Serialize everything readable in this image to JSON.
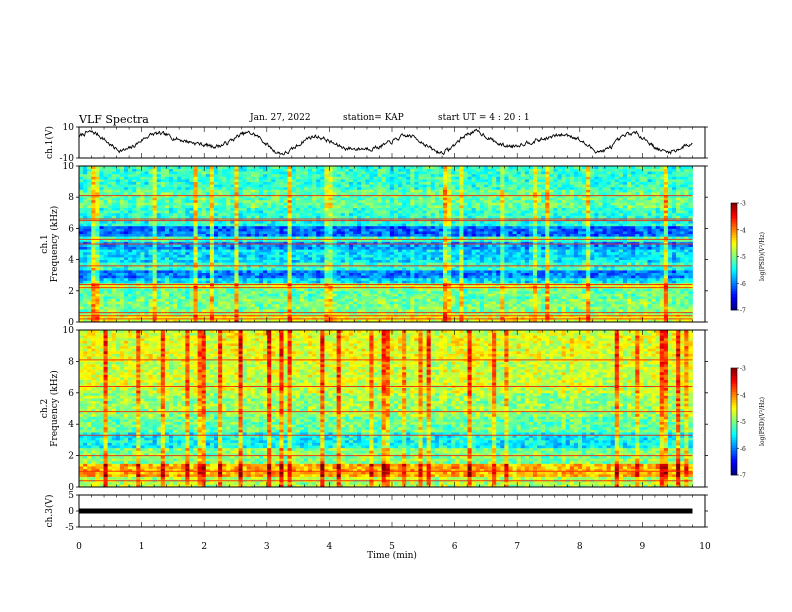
{
  "header": {
    "title": "VLF Spectra",
    "date": "Jan. 27, 2022",
    "station": "station= KAP",
    "start_ut": "start  UT =   4 : 20 : 1"
  },
  "chart_data": [
    {
      "type": "line",
      "panel": "ch1-waveform",
      "ylabel": "ch.1(V)",
      "ylim": [
        -10,
        10
      ],
      "yticks": [
        "10",
        "-10"
      ],
      "x_range": [
        0,
        9.8
      ],
      "color": "#000000"
    },
    {
      "type": "heatmap",
      "panel": "ch1-spectrogram",
      "ylabel": "ch.1\nFrequency (kHz)",
      "ylim": [
        0,
        10
      ],
      "yticks": [
        "0",
        "2",
        "4",
        "6",
        "8",
        "10"
      ],
      "x_range": [
        0,
        9.8
      ],
      "colorbar": {
        "label": "log(PSD)(V²/Hz)",
        "range": [
          -7,
          -3
        ],
        "ticks": [
          "-3",
          "-4",
          "-5",
          "-6",
          "-7"
        ]
      },
      "bands": [
        {
          "f0": 0.0,
          "f1": 0.5,
          "level": -4.6
        },
        {
          "f0": 0.5,
          "f1": 1.5,
          "level": -5.0
        },
        {
          "f0": 1.5,
          "f1": 2.2,
          "level": -5.1
        },
        {
          "f0": 2.2,
          "f1": 2.5,
          "level": -4.7
        },
        {
          "f0": 2.5,
          "f1": 2.9,
          "level": -5.6
        },
        {
          "f0": 2.9,
          "f1": 3.4,
          "level": -6.0
        },
        {
          "f0": 3.4,
          "f1": 3.9,
          "level": -5.3
        },
        {
          "f0": 3.9,
          "f1": 4.6,
          "level": -5.6
        },
        {
          "f0": 4.6,
          "f1": 5.2,
          "level": -5.9
        },
        {
          "f0": 5.2,
          "f1": 5.5,
          "level": -5.2
        },
        {
          "f0": 5.5,
          "f1": 6.1,
          "level": -6.1
        },
        {
          "f0": 6.1,
          "f1": 6.6,
          "level": -5.4
        },
        {
          "f0": 6.6,
          "f1": 7.4,
          "level": -5.3
        },
        {
          "f0": 7.4,
          "f1": 8.5,
          "level": -5.1
        },
        {
          "f0": 8.5,
          "f1": 10.0,
          "level": -5.3
        }
      ],
      "lines_khz": [
        0.2,
        0.4,
        0.6,
        2.2,
        2.4,
        3.6,
        5.0,
        5.3,
        6.5,
        6.6,
        8.1
      ]
    },
    {
      "type": "heatmap",
      "panel": "ch2-spectrogram",
      "ylabel": "ch.2\nFrequency (kHz)",
      "ylim": [
        0,
        10
      ],
      "yticks": [
        "0",
        "2",
        "4",
        "6",
        "8",
        "10"
      ],
      "x_range": [
        0,
        9.8
      ],
      "colorbar": {
        "label": "log(PSD)(V²/Hz)",
        "range": [
          -7,
          -3
        ],
        "ticks": [
          "-3",
          "-4",
          "-5",
          "-6",
          "-7"
        ]
      },
      "bands": [
        {
          "f0": 0.0,
          "f1": 0.6,
          "level": -4.8
        },
        {
          "f0": 0.6,
          "f1": 1.5,
          "level": -4.2
        },
        {
          "f0": 1.5,
          "f1": 2.5,
          "level": -5.0
        },
        {
          "f0": 2.5,
          "f1": 3.5,
          "level": -5.5
        },
        {
          "f0": 3.5,
          "f1": 4.5,
          "level": -5.1
        },
        {
          "f0": 4.5,
          "f1": 6.0,
          "level": -4.9
        },
        {
          "f0": 6.0,
          "f1": 8.0,
          "level": -4.7
        },
        {
          "f0": 8.0,
          "f1": 10.0,
          "level": -4.6
        }
      ],
      "lines_khz": [
        0.4,
        1.0,
        2.0,
        3.3,
        4.8,
        6.4,
        8.1
      ]
    },
    {
      "type": "line",
      "panel": "ch3-waveform",
      "ylabel": "ch.3(V)",
      "ylim": [
        -5,
        5
      ],
      "yticks": [
        "5",
        "0",
        "-5"
      ],
      "x_range": [
        0,
        9.8
      ],
      "value": 0,
      "color": "#000000"
    }
  ],
  "x_axis": {
    "label": "Time (min)",
    "range": [
      0,
      10
    ],
    "ticks": [
      "0",
      "1",
      "2",
      "3",
      "4",
      "5",
      "6",
      "7",
      "8",
      "9",
      "10"
    ]
  }
}
